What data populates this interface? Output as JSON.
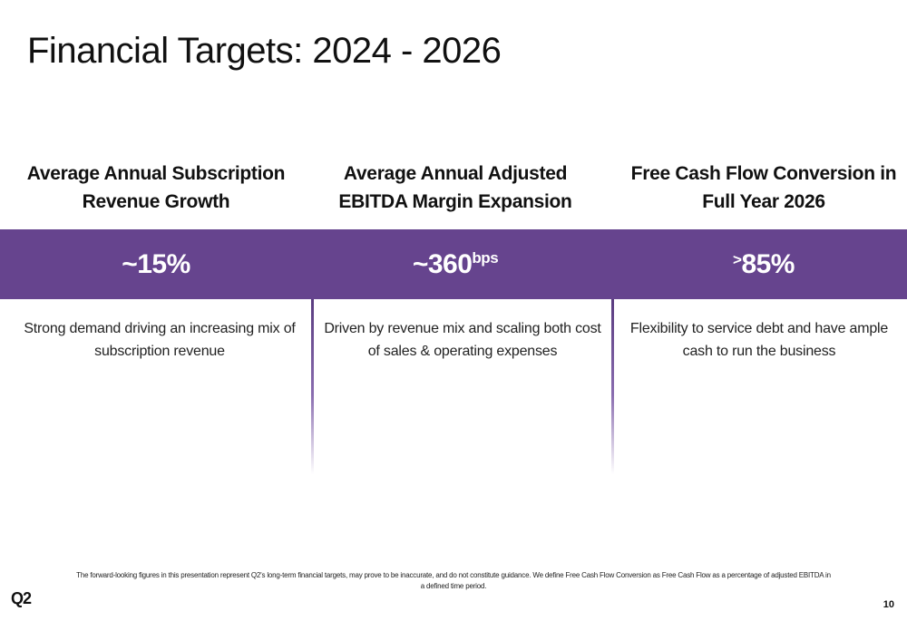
{
  "slide": {
    "title": "Financial Targets: 2024 - 2026",
    "columns": [
      {
        "header_line1": "Average Annual Subscription",
        "header_line2": "Revenue Growth",
        "metric_prefix": "",
        "metric_main": "~15%",
        "metric_suffix": "",
        "desc_line1": "Strong demand driving an increasing mix of",
        "desc_line2": "subscription revenue"
      },
      {
        "header_line1": "Average Annual Adjusted",
        "header_line2": "EBITDA Margin Expansion",
        "metric_prefix": "",
        "metric_main": "~360",
        "metric_suffix": "bps",
        "desc_line1": "Driven by revenue mix and scaling both cost",
        "desc_line2": "of sales & operating expenses"
      },
      {
        "header_line1": "Free Cash Flow Conversion in",
        "header_line2": "Full Year 2026",
        "metric_prefix": ">",
        "metric_main": "85%",
        "metric_suffix": "",
        "desc_line1": "Flexibility to service debt and have ample",
        "desc_line2": "cash to run the business"
      }
    ],
    "footnote_line1": "The forward-looking figures in this presentation represent Q2's long-term financial targets, may prove to be inaccurate, and do not constitute guidance. We define Free Cash Flow Conversion as Free Cash Flow as a percentage of adjusted EBITDA in",
    "footnote_line2": "a defined time period.",
    "logo_text": "Q2",
    "page_number": "10"
  },
  "colors": {
    "band": "#66448e",
    "divider": "#5a3c80",
    "text": "#111111"
  }
}
